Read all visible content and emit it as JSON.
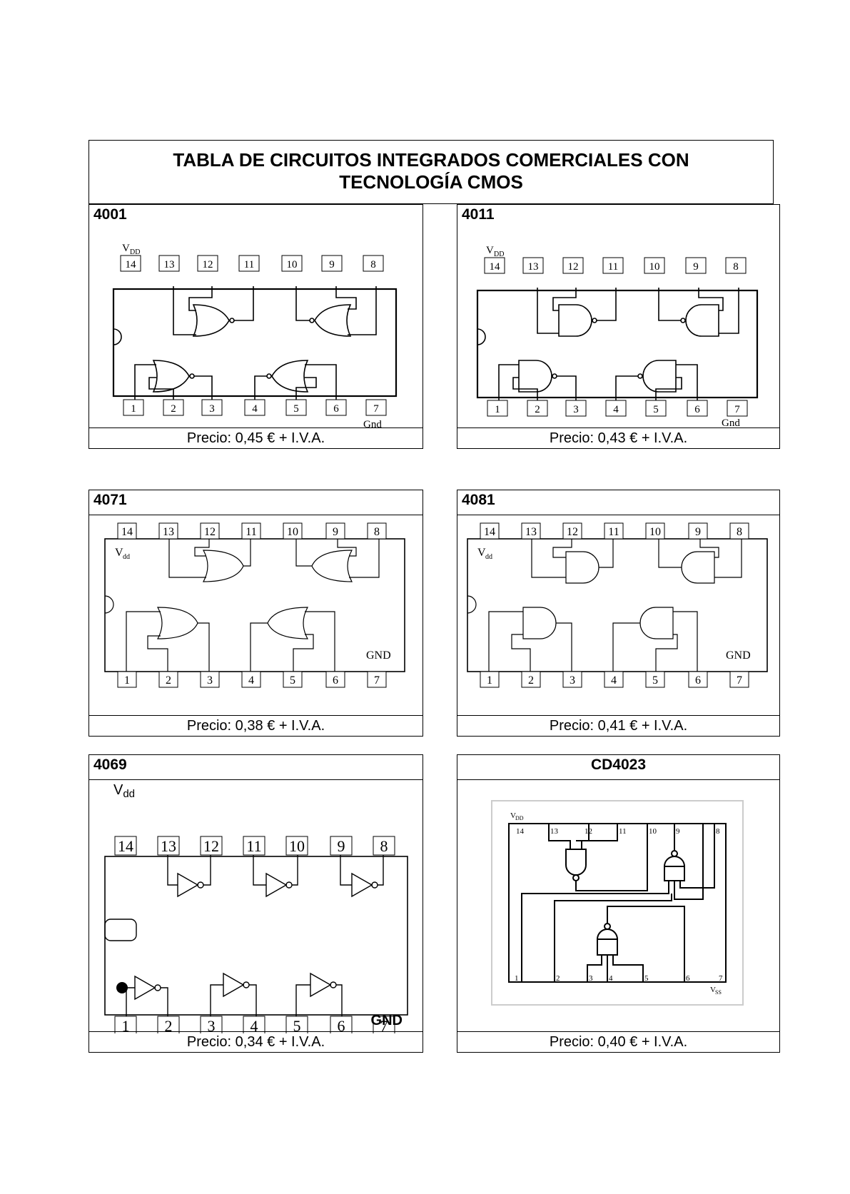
{
  "title": {
    "line1": "TABLA DE CIRCUITOS INTEGRADOS COMERCIALES CON",
    "line2": "TECNOLOGÍA CMOS"
  },
  "chips": [
    {
      "name": "4001",
      "price": "Precio: 0,45 € + I.V.A.",
      "supply": "V",
      "supply_sub": "DD",
      "ground": "Gnd",
      "gate": "nor"
    },
    {
      "name": "4011",
      "price": "Precio: 0,43 € + I.V.A.",
      "supply": "V",
      "supply_sub": "DD",
      "ground": "Gnd",
      "gate": "nand"
    },
    {
      "name": "4071",
      "price": "Precio: 0,38 € + I.V.A.",
      "supply": "V",
      "supply_sub": "dd",
      "ground": "GND",
      "gate": "or"
    },
    {
      "name": "4081",
      "price": "Precio: 0,41 € + I.V.A.",
      "supply": "V",
      "supply_sub": "dd",
      "ground": "GND",
      "gate": "and"
    },
    {
      "name": "4069",
      "price": "Precio: 0,34 € + I.V.A.",
      "supply": "V",
      "supply_sub": "dd",
      "ground": "GND",
      "gate": "not"
    },
    {
      "name": "CD4023",
      "price": "Precio: 0,40 € + I.V.A.",
      "supply": "V",
      "supply_sub": "DD",
      "ground": "V",
      "ground_sub": "SS",
      "gate": "nand3"
    }
  ],
  "pins_top": [
    "14",
    "13",
    "12",
    "11",
    "10",
    "9",
    "8"
  ],
  "pins_bottom": [
    "1",
    "2",
    "3",
    "4",
    "5",
    "6",
    "7"
  ]
}
